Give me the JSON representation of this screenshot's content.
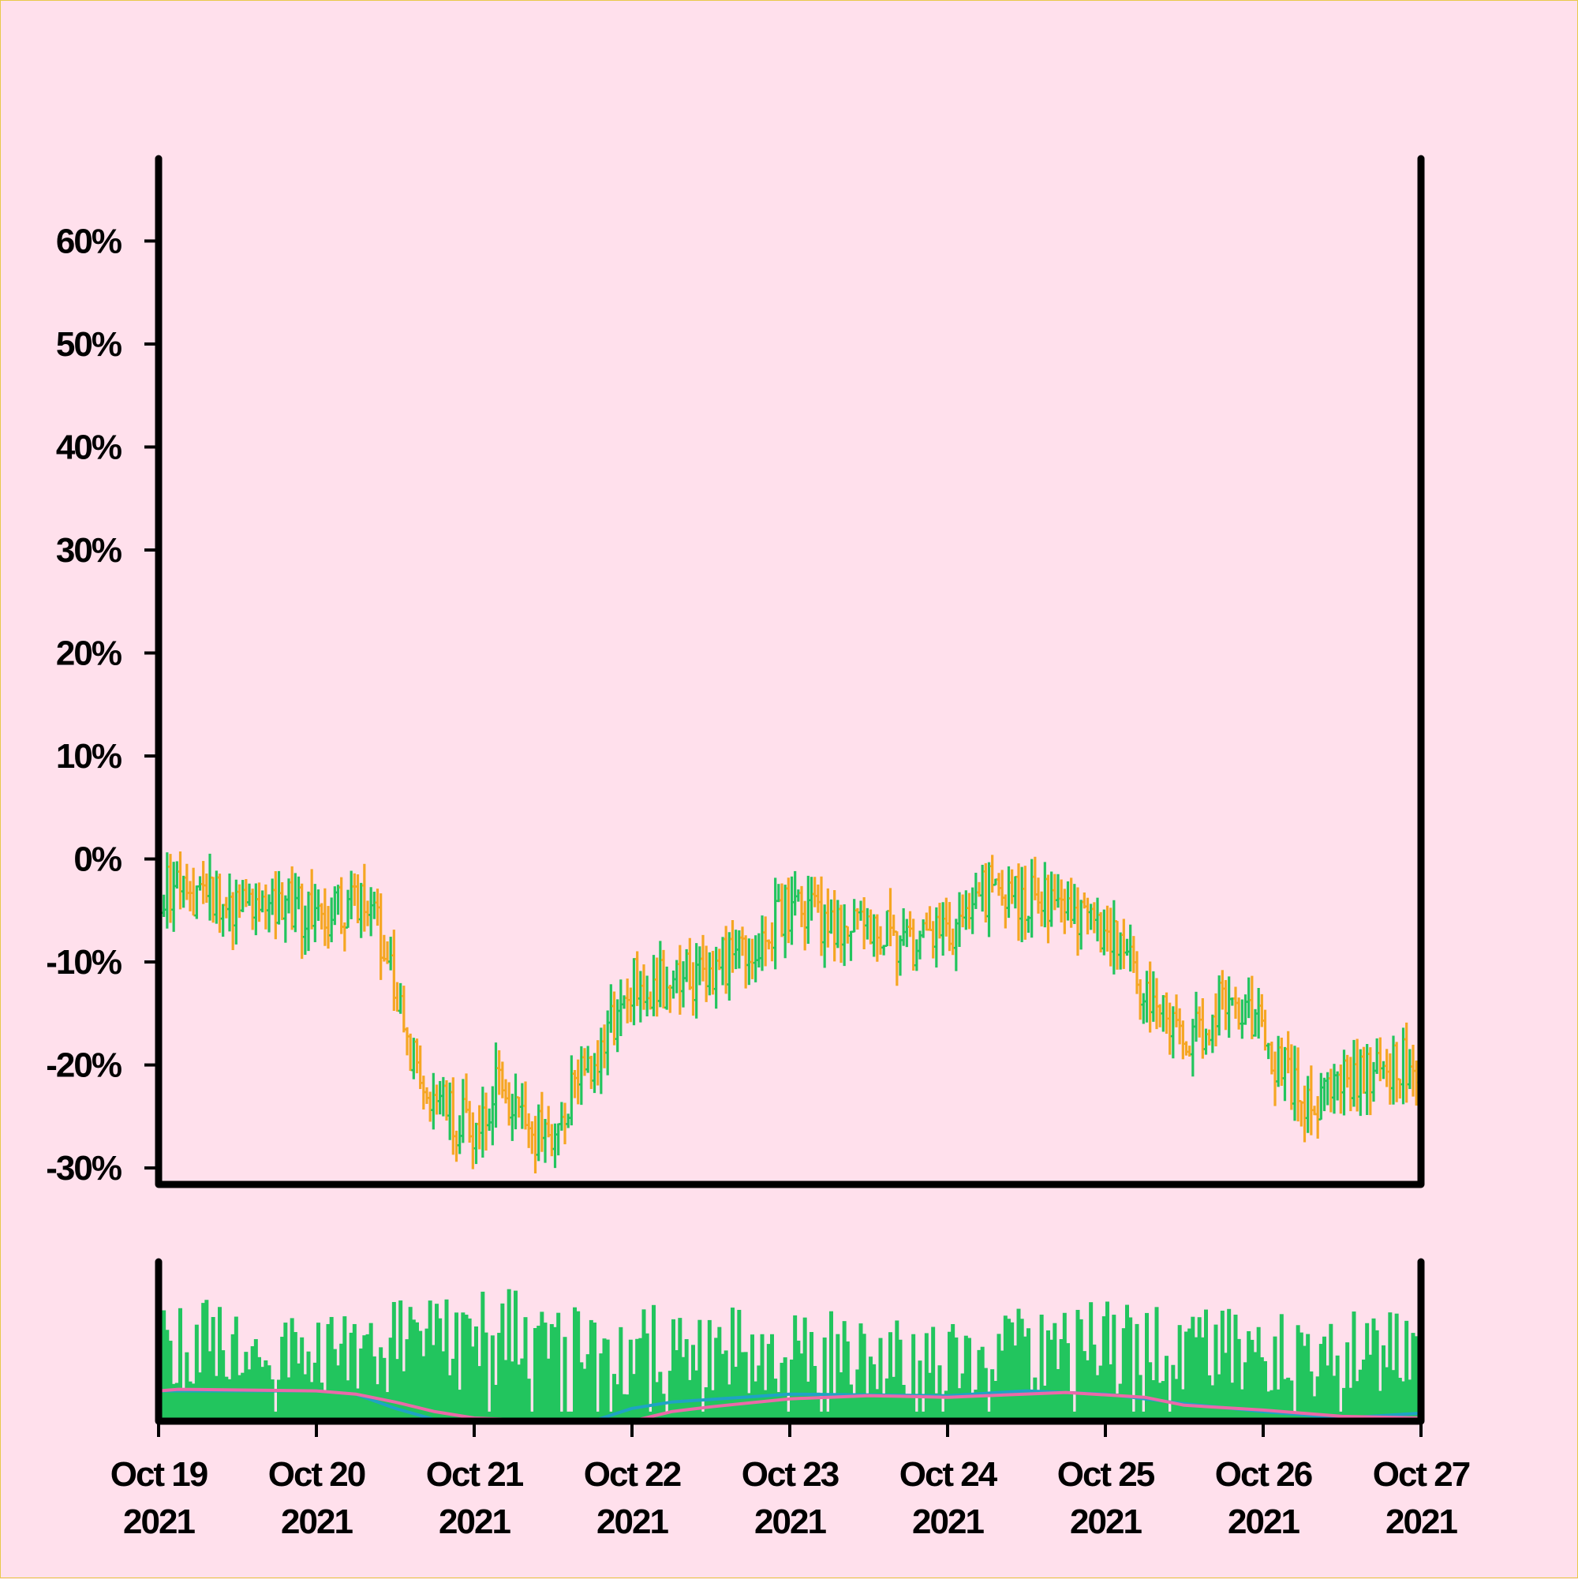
{
  "chart_data": [
    {
      "type": "ohlc",
      "panel": "price",
      "y_tick_labels": [
        "60%",
        "50%",
        "40%",
        "30%",
        "20%",
        "10%",
        "0%",
        "-10%",
        "-20%",
        "-30%"
      ],
      "y_ticks": [
        0.6,
        0.5,
        0.4,
        0.3,
        0.2,
        0.1,
        0.0,
        -0.1,
        -0.2,
        -0.3
      ],
      "ylim": [
        -0.316,
        0.68
      ],
      "xlim": [
        "2021-10-19T00:00",
        "2021-10-27T00:00"
      ],
      "bar_interval_hours": 0.5,
      "colors": {
        "up": "#22c55e",
        "down": "#f5a623"
      },
      "series_close_path": [
        {
          "x": "2021-10-19T00:00",
          "close": -0.03
        },
        {
          "x": "2021-10-19T06:00",
          "close": -0.04
        },
        {
          "x": "2021-10-19T12:00",
          "close": -0.04
        },
        {
          "x": "2021-10-19T18:00",
          "close": -0.04
        },
        {
          "x": "2021-10-20T00:00",
          "close": -0.06
        },
        {
          "x": "2021-10-20T04:00",
          "close": -0.05
        },
        {
          "x": "2021-10-20T08:00",
          "close": -0.03
        },
        {
          "x": "2021-10-20T12:00",
          "close": -0.13
        },
        {
          "x": "2021-10-20T16:00",
          "close": -0.22
        },
        {
          "x": "2021-10-20T20:00",
          "close": -0.25
        },
        {
          "x": "2021-10-21T00:00",
          "close": -0.26
        },
        {
          "x": "2021-10-21T04:00",
          "close": -0.22
        },
        {
          "x": "2021-10-21T08:00",
          "close": -0.27
        },
        {
          "x": "2021-10-21T12:00",
          "close": -0.26
        },
        {
          "x": "2021-10-21T16:00",
          "close": -0.22
        },
        {
          "x": "2021-10-21T20:00",
          "close": -0.17
        },
        {
          "x": "2021-10-22T00:00",
          "close": -0.12
        },
        {
          "x": "2021-10-22T06:00",
          "close": -0.12
        },
        {
          "x": "2021-10-22T12:00",
          "close": -0.11
        },
        {
          "x": "2021-10-22T18:00",
          "close": -0.08
        },
        {
          "x": "2021-10-23T00:00",
          "close": -0.05
        },
        {
          "x": "2021-10-23T06:00",
          "close": -0.06
        },
        {
          "x": "2021-10-23T12:00",
          "close": -0.06
        },
        {
          "x": "2021-10-23T18:00",
          "close": -0.09
        },
        {
          "x": "2021-10-24T00:00",
          "close": -0.07
        },
        {
          "x": "2021-10-24T06:00",
          "close": -0.03
        },
        {
          "x": "2021-10-24T12:00",
          "close": -0.04
        },
        {
          "x": "2021-10-24T18:00",
          "close": -0.04
        },
        {
          "x": "2021-10-25T00:00",
          "close": -0.07
        },
        {
          "x": "2021-10-25T06:00",
          "close": -0.13
        },
        {
          "x": "2021-10-25T12:00",
          "close": -0.18
        },
        {
          "x": "2021-10-25T18:00",
          "close": -0.14
        },
        {
          "x": "2021-10-26T00:00",
          "close": -0.17
        },
        {
          "x": "2021-10-26T06:00",
          "close": -0.24
        },
        {
          "x": "2021-10-26T12:00",
          "close": -0.22
        },
        {
          "x": "2021-10-26T18:00",
          "close": -0.21
        },
        {
          "x": "2021-10-27T00:00",
          "close": -0.19
        }
      ]
    },
    {
      "type": "bar",
      "panel": "volume",
      "bar_color": "#22c55e",
      "ylim": [
        0,
        1
      ],
      "volume_profile": [
        {
          "x": "2021-10-19T00:00",
          "level": 0.7
        },
        {
          "x": "2021-10-20T00:00",
          "level": 0.6
        },
        {
          "x": "2021-10-21T00:00",
          "level": 0.75
        },
        {
          "x": "2021-10-22T00:00",
          "level": 0.65
        },
        {
          "x": "2021-10-23T00:00",
          "level": 0.62
        },
        {
          "x": "2021-10-24T00:00",
          "level": 0.58
        },
        {
          "x": "2021-10-25T00:00",
          "level": 0.68
        },
        {
          "x": "2021-10-26T00:00",
          "level": 0.6
        },
        {
          "x": "2021-10-27T00:00",
          "level": 0.66
        }
      ],
      "moving_averages": [
        {
          "color": "#1fa3c4",
          "points": [
            {
              "x": "2021-10-19T00:00",
              "level": 0.19
            },
            {
              "x": "2021-10-20T00:00",
              "level": 0.19
            },
            {
              "x": "2021-10-20T06:00",
              "level": 0.17
            },
            {
              "x": "2021-10-20T12:00",
              "level": 0.08
            },
            {
              "x": "2021-10-20T18:00",
              "level": 0.01
            },
            {
              "x": "2021-10-21T00:00",
              "level": 0.0
            },
            {
              "x": "2021-10-21T18:00",
              "level": 0.0
            },
            {
              "x": "2021-10-22T00:00",
              "level": 0.08
            },
            {
              "x": "2021-10-22T06:00",
              "level": 0.12
            },
            {
              "x": "2021-10-23T00:00",
              "level": 0.17
            },
            {
              "x": "2021-10-24T00:00",
              "level": 0.16
            },
            {
              "x": "2021-10-24T12:00",
              "level": 0.19
            },
            {
              "x": "2021-10-25T00:00",
              "level": 0.17
            },
            {
              "x": "2021-10-25T12:00",
              "level": 0.11
            },
            {
              "x": "2021-10-26T00:00",
              "level": 0.06
            },
            {
              "x": "2021-10-26T12:00",
              "level": 0.02
            },
            {
              "x": "2021-10-27T00:00",
              "level": 0.05
            }
          ]
        },
        {
          "color": "#ec6aa8",
          "points": [
            {
              "x": "2021-10-19T00:00",
              "level": 0.19
            },
            {
              "x": "2021-10-19T03:00",
              "level": 0.2
            },
            {
              "x": "2021-10-20T00:00",
              "level": 0.19
            },
            {
              "x": "2021-10-20T06:00",
              "level": 0.17
            },
            {
              "x": "2021-10-20T12:00",
              "level": 0.12
            },
            {
              "x": "2021-10-20T18:00",
              "level": 0.06
            },
            {
              "x": "2021-10-21T00:00",
              "level": 0.02
            },
            {
              "x": "2021-10-21T12:00",
              "level": 0.0
            },
            {
              "x": "2021-10-22T00:00",
              "level": 0.0
            },
            {
              "x": "2021-10-22T06:00",
              "level": 0.06
            },
            {
              "x": "2021-10-22T12:00",
              "level": 0.09
            },
            {
              "x": "2021-10-23T00:00",
              "level": 0.14
            },
            {
              "x": "2021-10-23T12:00",
              "level": 0.16
            },
            {
              "x": "2021-10-24T00:00",
              "level": 0.15
            },
            {
              "x": "2021-10-24T18:00",
              "level": 0.18
            },
            {
              "x": "2021-10-25T06:00",
              "level": 0.15
            },
            {
              "x": "2021-10-25T12:00",
              "level": 0.1
            },
            {
              "x": "2021-10-26T00:00",
              "level": 0.07
            },
            {
              "x": "2021-10-26T12:00",
              "level": 0.03
            },
            {
              "x": "2021-10-27T00:00",
              "level": 0.02
            }
          ]
        }
      ]
    }
  ],
  "x_ticks": [
    {
      "x": "2021-10-19T00:00",
      "line1": "Oct 19",
      "line2": "2021"
    },
    {
      "x": "2021-10-20T00:00",
      "line1": "Oct 20",
      "line2": "2021"
    },
    {
      "x": "2021-10-21T00:00",
      "line1": "Oct 21",
      "line2": "2021"
    },
    {
      "x": "2021-10-22T00:00",
      "line1": "Oct 22",
      "line2": "2021"
    },
    {
      "x": "2021-10-23T00:00",
      "line1": "Oct 23",
      "line2": "2021"
    },
    {
      "x": "2021-10-24T00:00",
      "line1": "Oct 24",
      "line2": "2021"
    },
    {
      "x": "2021-10-25T00:00",
      "line1": "Oct 25",
      "line2": "2021"
    },
    {
      "x": "2021-10-26T00:00",
      "line1": "Oct 26",
      "line2": "2021"
    },
    {
      "x": "2021-10-27T00:00",
      "line1": "Oct 27",
      "line2": "2021"
    }
  ],
  "colors": {
    "background": "#ffe0ec",
    "axis": "#000000"
  }
}
